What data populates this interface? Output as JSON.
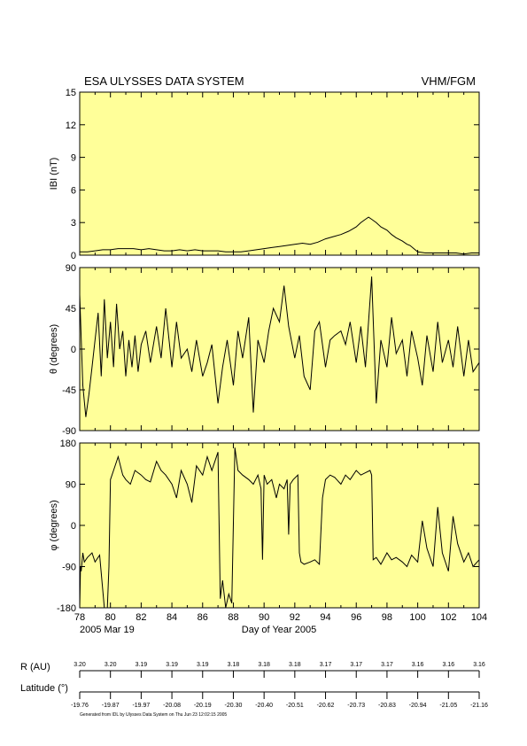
{
  "header": {
    "title": "ESA ULYSSES DATA SYSTEM",
    "instrument": "VHM/FGM"
  },
  "colors": {
    "panel_bg": "#ffff99",
    "trace": "#000000",
    "frame": "#000000"
  },
  "chart_data": [
    {
      "id": "B",
      "type": "line",
      "ylabel": "IBI (nT)",
      "ylim": [
        0,
        15
      ],
      "yticks": [
        0,
        3,
        6,
        9,
        12,
        15
      ],
      "xlim": [
        78,
        104
      ],
      "x": [
        78.0,
        78.5,
        79.0,
        79.5,
        80.0,
        80.5,
        81.0,
        81.5,
        82.0,
        82.5,
        83.0,
        83.5,
        84.0,
        84.5,
        85.0,
        85.5,
        86.0,
        86.5,
        87.0,
        87.5,
        88.0,
        88.5,
        89.0,
        89.5,
        90.0,
        90.5,
        91.0,
        91.5,
        92.0,
        92.5,
        93.0,
        93.5,
        94.0,
        94.5,
        95.0,
        95.5,
        96.0,
        96.3,
        96.6,
        96.8,
        97.0,
        97.3,
        97.6,
        98.0,
        98.3,
        98.6,
        99.0,
        99.3,
        99.5,
        100.0,
        100.5,
        101.0,
        101.5,
        102.0,
        102.5,
        103.0,
        103.5,
        104.0
      ],
      "y": [
        0.3,
        0.3,
        0.4,
        0.5,
        0.5,
        0.6,
        0.6,
        0.6,
        0.5,
        0.6,
        0.5,
        0.4,
        0.4,
        0.5,
        0.4,
        0.5,
        0.4,
        0.4,
        0.4,
        0.3,
        0.3,
        0.3,
        0.4,
        0.5,
        0.6,
        0.7,
        0.8,
        0.9,
        1.0,
        1.1,
        1.0,
        1.2,
        1.5,
        1.7,
        1.9,
        2.2,
        2.6,
        3.0,
        3.3,
        3.5,
        3.3,
        3.0,
        2.6,
        2.3,
        1.9,
        1.6,
        1.3,
        1.0,
        0.9,
        0.3,
        0.2,
        0.2,
        0.2,
        0.2,
        0.2,
        0.1,
        0.2,
        0.2
      ]
    },
    {
      "id": "theta",
      "type": "line",
      "ylabel": "θ (degrees)",
      "ylim": [
        -90,
        90
      ],
      "yticks": [
        -90,
        -45,
        0,
        45,
        90
      ],
      "xlim": [
        78,
        104
      ],
      "x": [
        78.0,
        78.2,
        78.4,
        78.6,
        78.8,
        79.0,
        79.2,
        79.4,
        79.6,
        79.8,
        80.0,
        80.2,
        80.4,
        80.6,
        80.8,
        81.0,
        81.2,
        81.4,
        81.6,
        81.8,
        82.0,
        82.3,
        82.6,
        83.0,
        83.3,
        83.6,
        84.0,
        84.3,
        84.6,
        85.0,
        85.3,
        85.6,
        86.0,
        86.3,
        86.6,
        87.0,
        87.3,
        87.6,
        88.0,
        88.3,
        88.6,
        89.0,
        89.3,
        89.6,
        90.0,
        90.3,
        90.6,
        91.0,
        91.3,
        91.6,
        92.0,
        92.3,
        92.6,
        93.0,
        93.3,
        93.6,
        94.0,
        94.3,
        94.6,
        95.0,
        95.3,
        95.6,
        96.0,
        96.3,
        96.6,
        97.0,
        97.3,
        97.6,
        98.0,
        98.3,
        98.6,
        99.0,
        99.3,
        99.6,
        100.0,
        100.3,
        100.6,
        101.0,
        101.3,
        101.6,
        102.0,
        102.3,
        102.6,
        103.0,
        103.3,
        103.6,
        104.0
      ],
      "y": [
        60,
        -40,
        -75,
        -50,
        -20,
        10,
        40,
        -30,
        55,
        -10,
        30,
        -20,
        50,
        0,
        20,
        -30,
        10,
        -20,
        15,
        -25,
        5,
        20,
        -15,
        25,
        -10,
        45,
        -20,
        30,
        -10,
        0,
        -25,
        10,
        -30,
        -15,
        5,
        -60,
        -20,
        10,
        -40,
        20,
        -10,
        35,
        -70,
        10,
        -15,
        20,
        45,
        30,
        70,
        25,
        -10,
        15,
        -30,
        -45,
        20,
        30,
        -20,
        10,
        15,
        20,
        5,
        30,
        -15,
        25,
        -20,
        80,
        -60,
        10,
        -20,
        35,
        -5,
        10,
        -30,
        20,
        -10,
        -40,
        15,
        -25,
        30,
        -15,
        10,
        -20,
        25,
        -30,
        10,
        -25,
        -15
      ]
    },
    {
      "id": "phi",
      "type": "line",
      "ylabel": "φ (degrees)",
      "ylim": [
        -180,
        180
      ],
      "yticks": [
        -180,
        -90,
        0,
        90,
        180
      ],
      "xlim": [
        78,
        104
      ],
      "x": [
        78.0,
        78.05,
        78.1,
        78.2,
        78.3,
        78.5,
        78.8,
        79.0,
        79.3,
        79.6,
        79.8,
        79.9,
        80.0,
        80.2,
        80.5,
        80.8,
        81.0,
        81.3,
        81.6,
        82.0,
        82.3,
        82.6,
        83.0,
        83.3,
        83.6,
        84.0,
        84.3,
        84.6,
        85.0,
        85.3,
        85.6,
        86.0,
        86.3,
        86.6,
        87.0,
        87.15,
        87.3,
        87.5,
        87.7,
        87.9,
        88.1,
        88.3,
        88.6,
        89.0,
        89.3,
        89.6,
        89.8,
        89.9,
        90.0,
        90.2,
        90.5,
        90.8,
        91.0,
        91.3,
        91.5,
        91.6,
        91.7,
        91.9,
        92.2,
        92.3,
        92.4,
        92.6,
        93.0,
        93.3,
        93.6,
        93.8,
        94.0,
        94.3,
        94.6,
        95.0,
        95.3,
        95.6,
        96.0,
        96.3,
        96.6,
        96.9,
        97.0,
        97.1,
        97.3,
        97.6,
        98.0,
        98.3,
        98.6,
        99.0,
        99.3,
        99.6,
        100.0,
        100.3,
        100.6,
        101.0,
        101.3,
        101.6,
        102.0,
        102.3,
        102.6,
        103.0,
        103.3,
        103.6,
        104.0
      ],
      "y": [
        -180,
        -90,
        -100,
        -60,
        -80,
        -70,
        -60,
        -80,
        -65,
        -180,
        -180,
        -90,
        100,
        120,
        150,
        110,
        100,
        90,
        120,
        110,
        100,
        95,
        140,
        120,
        110,
        90,
        60,
        120,
        90,
        50,
        130,
        110,
        150,
        120,
        160,
        -160,
        -120,
        -180,
        -150,
        -170,
        170,
        120,
        110,
        100,
        90,
        110,
        80,
        -75,
        110,
        90,
        100,
        60,
        90,
        80,
        100,
        -20,
        90,
        100,
        110,
        -60,
        -80,
        -85,
        -80,
        -75,
        -85,
        60,
        100,
        110,
        105,
        90,
        110,
        100,
        120,
        110,
        115,
        120,
        110,
        -75,
        -70,
        -85,
        -60,
        -75,
        -70,
        -80,
        -90,
        -65,
        -80,
        10,
        -50,
        -90,
        40,
        -60,
        -100,
        20,
        -40,
        -80,
        -60,
        -90,
        -75
      ]
    }
  ],
  "x_axis": {
    "ticks": [
      78,
      80,
      82,
      84,
      86,
      88,
      90,
      92,
      94,
      96,
      98,
      100,
      102,
      104
    ],
    "tick_labels": [
      "78",
      "80",
      "82",
      "84",
      "86",
      "88",
      "90",
      "92",
      "94",
      "96",
      "98",
      "100",
      "102",
      "104"
    ],
    "start_label": "2005 Mar 19",
    "xlabel": "Day of Year 2005"
  },
  "ephemeris": {
    "r_label": "R (AU)",
    "r_values": [
      "3.20",
      "3.20",
      "3.19",
      "3.19",
      "3.19",
      "3.18",
      "3.18",
      "3.18",
      "3.17",
      "3.17",
      "3.17",
      "3.16",
      "3.16",
      "3.16"
    ],
    "lat_label": "Latitude (°)",
    "lat_values": [
      "-19.76",
      "-19.87",
      "-19.97",
      "-20.08",
      "-20.19",
      "-20.30",
      "-20.40",
      "-20.51",
      "-20.62",
      "-20.73",
      "-20.83",
      "-20.94",
      "-21.05",
      "-21.16"
    ]
  },
  "footer": {
    "generated": "Generated from IDL by Ulysses Data System on Thu Jun 23 12:02:15 2005"
  }
}
